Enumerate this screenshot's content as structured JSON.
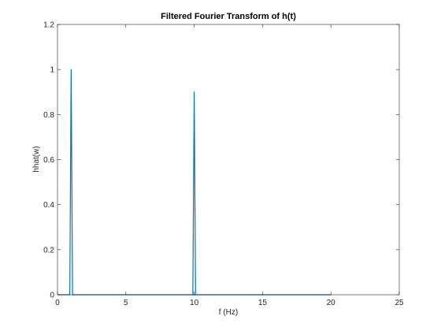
{
  "chart_data": {
    "type": "line",
    "title": "Filtered Fourier Transform of h(t)",
    "xlabel": "f (Hz)",
    "ylabel": "hhat(w)",
    "xlim": [
      0,
      25
    ],
    "ylim": [
      0,
      1.2
    ],
    "xticks": [
      0,
      5,
      10,
      15,
      20,
      25
    ],
    "xtick_labels": [
      "0",
      "5",
      "10",
      "15",
      "20",
      "25"
    ],
    "yticks": [
      0,
      0.2,
      0.4,
      0.6,
      0.8,
      1,
      1.2
    ],
    "ytick_labels": [
      "0",
      "0.2",
      "0.4",
      "0.6",
      "0.8",
      "1",
      "1.2"
    ],
    "grid": false,
    "box": true,
    "series": [
      {
        "color": "#0072BD",
        "x": [
          0,
          0.9,
          1.0,
          1.1,
          20
        ],
        "y": [
          0,
          0,
          1.0,
          0,
          0
        ],
        "x2": [
          9.9,
          10.0,
          10.1
        ],
        "y2": [
          0,
          0.9,
          0
        ]
      }
    ]
  }
}
